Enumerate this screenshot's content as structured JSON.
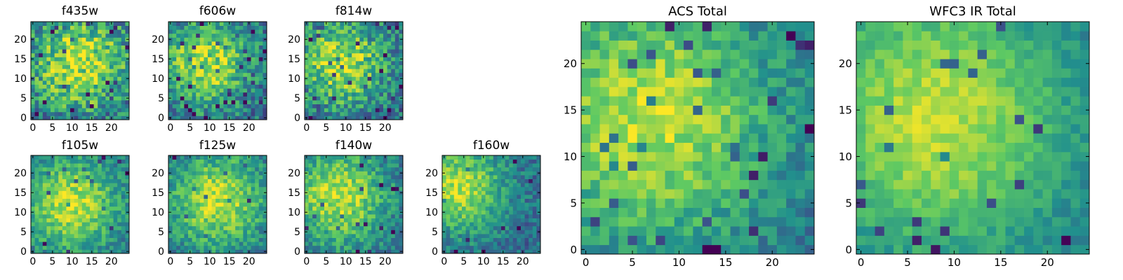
{
  "figure": {
    "colormap": "viridis",
    "colormap_stops": [
      "#440154",
      "#3b528b",
      "#21908d",
      "#5dc963",
      "#fde725"
    ]
  },
  "chart_data": [
    {
      "type": "heatmap",
      "title": "f435w",
      "grid_size": 25,
      "xticks": [
        0,
        5,
        10,
        15,
        20
      ],
      "yticks": [
        0,
        5,
        10,
        15,
        20
      ],
      "xlim": [
        0,
        24
      ],
      "ylim": [
        0,
        24
      ],
      "grid": false,
      "seed": 11,
      "noise": 0.26,
      "bias": 0.05,
      "peak": [
        12,
        14
      ],
      "sigma": 9
    },
    {
      "type": "heatmap",
      "title": "f606w",
      "grid_size": 25,
      "xticks": [
        0,
        5,
        10,
        15,
        20
      ],
      "yticks": [
        0,
        5,
        10,
        15,
        20
      ],
      "xlim": [
        0,
        24
      ],
      "ylim": [
        0,
        24
      ],
      "grid": false,
      "seed": 23,
      "noise": 0.22,
      "bias": 0.05,
      "peak": [
        9,
        14
      ],
      "sigma": 8
    },
    {
      "type": "heatmap",
      "title": "f814w",
      "grid_size": 25,
      "xticks": [
        0,
        5,
        10,
        15,
        20
      ],
      "yticks": [
        0,
        5,
        10,
        15,
        20
      ],
      "xlim": [
        0,
        24
      ],
      "ylim": [
        0,
        24
      ],
      "grid": false,
      "seed": 37,
      "noise": 0.24,
      "bias": 0.05,
      "peak": [
        9,
        14
      ],
      "sigma": 8
    },
    {
      "type": "heatmap",
      "title": "f105w",
      "grid_size": 25,
      "xticks": [
        0,
        5,
        10,
        15,
        20
      ],
      "yticks": [
        0,
        5,
        10,
        15,
        20
      ],
      "xlim": [
        0,
        24
      ],
      "ylim": [
        0,
        24
      ],
      "grid": false,
      "seed": 41,
      "noise": 0.16,
      "bias": 0.02,
      "peak": [
        10,
        12
      ],
      "sigma": 9
    },
    {
      "type": "heatmap",
      "title": "f125w",
      "grid_size": 25,
      "xticks": [
        0,
        5,
        10,
        15,
        20
      ],
      "yticks": [
        0,
        5,
        10,
        15,
        20
      ],
      "xlim": [
        0,
        24
      ],
      "ylim": [
        0,
        24
      ],
      "grid": false,
      "seed": 53,
      "noise": 0.17,
      "bias": 0.02,
      "peak": [
        12,
        13
      ],
      "sigma": 9
    },
    {
      "type": "heatmap",
      "title": "f140w",
      "grid_size": 25,
      "xticks": [
        0,
        5,
        10,
        15,
        20
      ],
      "yticks": [
        0,
        5,
        10,
        15,
        20
      ],
      "xlim": [
        0,
        24
      ],
      "ylim": [
        0,
        24
      ],
      "grid": false,
      "seed": 67,
      "noise": 0.17,
      "bias": 0.02,
      "peak": [
        8,
        14
      ],
      "sigma": 9
    },
    {
      "type": "heatmap",
      "title": "f160w",
      "grid_size": 25,
      "xticks": [
        0,
        5,
        10,
        15,
        20
      ],
      "yticks": [
        0,
        5,
        10,
        15,
        20
      ],
      "xlim": [
        0,
        24
      ],
      "ylim": [
        0,
        24
      ],
      "grid": false,
      "seed": 79,
      "noise": 0.16,
      "bias": 0.02,
      "peak": [
        4,
        16
      ],
      "sigma": 8
    },
    {
      "type": "heatmap",
      "title": "ACS Total",
      "grid_size": 25,
      "xticks": [
        0,
        5,
        10,
        15,
        20
      ],
      "yticks": [
        0,
        5,
        10,
        15,
        20
      ],
      "xlim": [
        0,
        24
      ],
      "ylim": [
        0,
        24
      ],
      "grid": false,
      "seed": 97,
      "noise": 0.14,
      "bias": 0.05,
      "peak": [
        7,
        14
      ],
      "sigma": 10
    },
    {
      "type": "heatmap",
      "title": "WFC3 IR Total",
      "grid_size": 25,
      "xticks": [
        0,
        5,
        10,
        15,
        20
      ],
      "yticks": [
        0,
        5,
        10,
        15,
        20
      ],
      "xlim": [
        0,
        24
      ],
      "ylim": [
        0,
        24
      ],
      "grid": false,
      "seed": 113,
      "noise": 0.09,
      "bias": 0.04,
      "peak": [
        8,
        14
      ],
      "sigma": 11
    }
  ]
}
